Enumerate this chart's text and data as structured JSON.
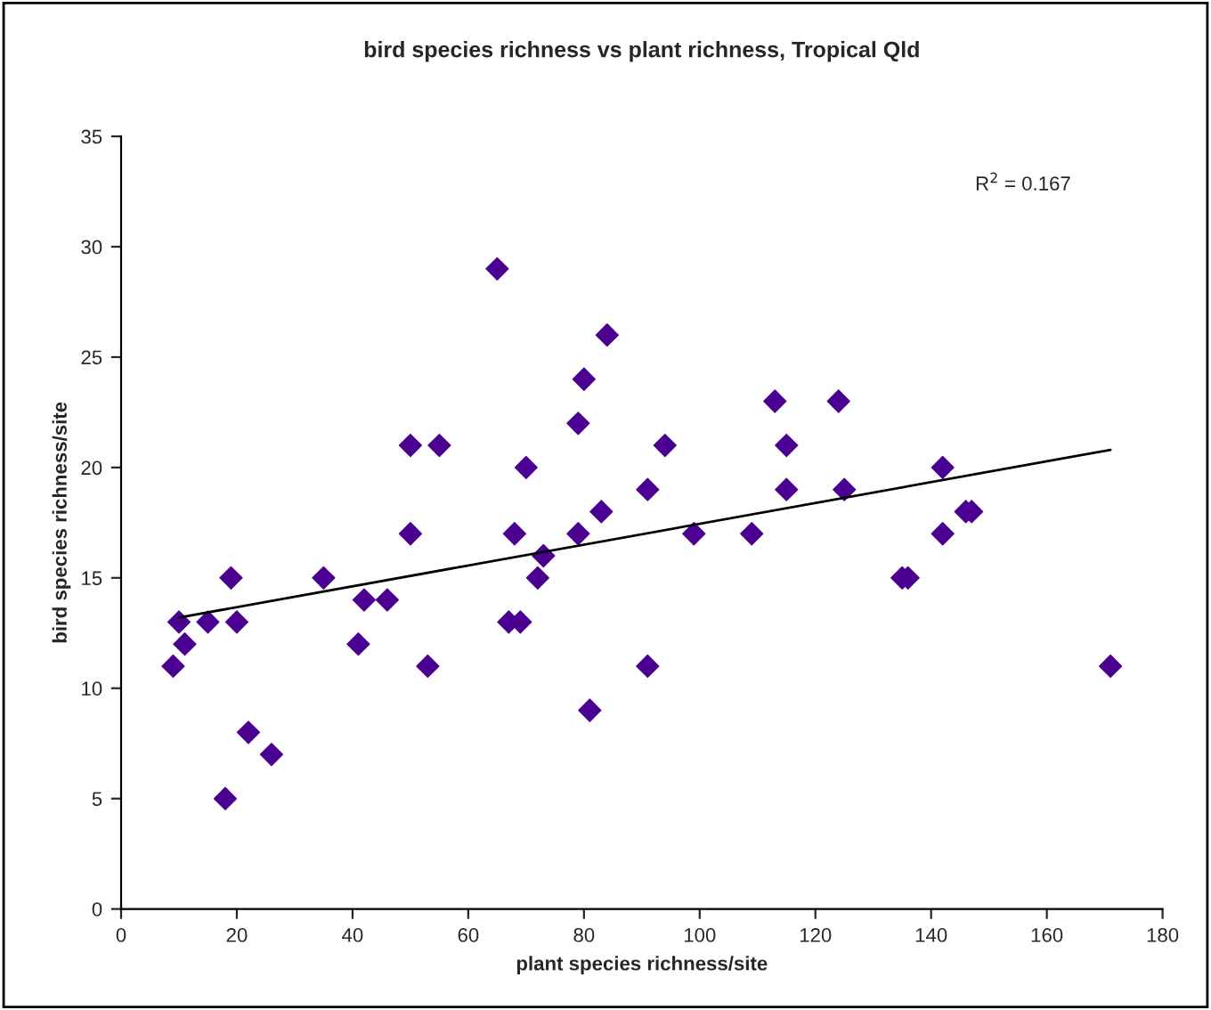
{
  "chart_data": {
    "type": "scatter",
    "title": "bird species richness vs plant richness, Tropical Qld",
    "xlabel": "plant species richness/site",
    "ylabel": "bird species richness/site",
    "xlim": [
      0,
      180
    ],
    "xticks": [
      0,
      20,
      40,
      60,
      80,
      100,
      120,
      140,
      160,
      180
    ],
    "ylim": [
      0,
      35
    ],
    "yticks": [
      0,
      5,
      10,
      15,
      20,
      25,
      30,
      35
    ],
    "grid": false,
    "legend": false,
    "marker": "diamond",
    "annotations": [
      "R$^{2}$ = 0.167"
    ],
    "series": [
      {
        "color": "#4b0091",
        "x": [
          9,
          10,
          11,
          15,
          18,
          19,
          20,
          22,
          26,
          35,
          41,
          42,
          46,
          50,
          50,
          53,
          55,
          65,
          67,
          68,
          69,
          70,
          72,
          73,
          79,
          79,
          80,
          81,
          83,
          84,
          91,
          91,
          94,
          99,
          109,
          113,
          115,
          115,
          124,
          125,
          135,
          136,
          142,
          142,
          146,
          147,
          171
        ],
        "values": [
          11,
          13,
          12,
          13,
          5,
          15,
          13,
          8,
          7,
          15,
          12,
          14,
          14,
          21,
          17,
          11,
          21,
          29,
          13,
          17,
          13,
          20,
          15,
          16,
          22,
          17,
          24,
          9,
          18,
          26,
          19,
          11,
          21,
          17,
          17,
          23,
          21,
          19,
          23,
          19,
          15,
          15,
          20,
          17,
          18,
          18,
          11
        ]
      },
      {
        "type": "line",
        "color": "#000000",
        "marker": "none",
        "line_style": "solid",
        "x": [
          10,
          171
        ],
        "values": [
          13.2,
          20.8
        ]
      }
    ]
  }
}
